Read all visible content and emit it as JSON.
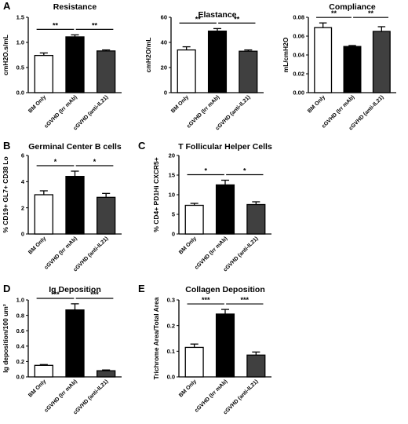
{
  "chart_data": [
    {
      "panel": "A",
      "type": "bar",
      "title": "Resistance",
      "ylabel": "cmH2O.s/mL",
      "categories": [
        "BM Only",
        "cGVHD (Irr mAb)",
        "cGVHD (anti-IL21)"
      ],
      "values": [
        0.74,
        1.11,
        0.83
      ],
      "errors": [
        0.05,
        0.04,
        0.02
      ],
      "ylim": [
        0,
        1.5
      ],
      "yticks": [
        "0.0",
        "0.5",
        "1.0",
        "1.5"
      ],
      "colors": [
        "#ffffff",
        "#000000",
        "#404040"
      ],
      "significance": [
        {
          "from": 0,
          "to": 1,
          "label": "**"
        },
        {
          "from": 1,
          "to": 2,
          "label": "**"
        }
      ]
    },
    {
      "panel": "",
      "type": "bar",
      "title": "Elastance",
      "ylabel": "cmH2O/mL",
      "categories": [
        "BM Only",
        "cGVHD (Irr mAb)",
        "cGVHD (anti-IL21)"
      ],
      "values": [
        34,
        49,
        33
      ],
      "errors": [
        2.5,
        2,
        1
      ],
      "ylim": [
        0,
        60
      ],
      "yticks": [
        "0",
        "20",
        "40",
        "60"
      ],
      "colors": [
        "#ffffff",
        "#000000",
        "#404040"
      ],
      "significance": [
        {
          "from": 0,
          "to": 1,
          "label": "**"
        },
        {
          "from": 1,
          "to": 2,
          "label": "**"
        }
      ]
    },
    {
      "panel": "",
      "type": "bar",
      "title": "Compliance",
      "ylabel": "mL/cmH2O",
      "categories": [
        "BM Only",
        "cGVHD (Irr mAb)",
        "cGVHD (anti-IL21)"
      ],
      "values": [
        0.069,
        0.049,
        0.065
      ],
      "errors": [
        0.005,
        0.001,
        0.005
      ],
      "ylim": [
        0,
        0.08
      ],
      "yticks": [
        "0.00",
        "0.02",
        "0.04",
        "0.06",
        "0.08"
      ],
      "colors": [
        "#ffffff",
        "#000000",
        "#404040"
      ],
      "significance": [
        {
          "from": 0,
          "to": 1,
          "label": "**"
        },
        {
          "from": 1,
          "to": 2,
          "label": "**"
        }
      ]
    },
    {
      "panel": "B",
      "type": "bar",
      "title": "Germinal Center B cells",
      "ylabel": "% CD19+ GL7+ CD38 Lo",
      "categories": [
        "BM Only",
        "cGVHD (Irr mAb)",
        "cGVHD (anti-IL21)"
      ],
      "values": [
        3.0,
        4.4,
        2.8
      ],
      "errors": [
        0.3,
        0.4,
        0.3
      ],
      "ylim": [
        0,
        6
      ],
      "yticks": [
        "0",
        "2",
        "4",
        "6"
      ],
      "colors": [
        "#ffffff",
        "#000000",
        "#404040"
      ],
      "significance": [
        {
          "from": 0,
          "to": 1,
          "label": "*"
        },
        {
          "from": 1,
          "to": 2,
          "label": "*"
        }
      ]
    },
    {
      "panel": "C",
      "type": "bar",
      "title": "T Follicular Helper Cells",
      "ylabel": "% CD4+ PD1Hi CXCR5+",
      "categories": [
        "BM Only",
        "cGVHD (Irr mAb)",
        "cGVHD (anti-IL21)"
      ],
      "values": [
        7.3,
        12.5,
        7.5
      ],
      "errors": [
        0.5,
        1.2,
        0.7
      ],
      "ylim": [
        0,
        20
      ],
      "yticks": [
        "0",
        "5",
        "10",
        "15",
        "20"
      ],
      "colors": [
        "#ffffff",
        "#000000",
        "#404040"
      ],
      "significance": [
        {
          "from": 0,
          "to": 1,
          "label": "*"
        },
        {
          "from": 1,
          "to": 2,
          "label": "*"
        }
      ]
    },
    {
      "panel": "D",
      "type": "bar",
      "title": "Ig Deposition",
      "ylabel": "Ig deposition/100 um²",
      "categories": [
        "BM Only",
        "cGVHD (Irr mAb)",
        "cGVHD (anti-IL21)"
      ],
      "values": [
        0.15,
        0.87,
        0.08
      ],
      "errors": [
        0.01,
        0.08,
        0.01
      ],
      "ylim": [
        0,
        1.0
      ],
      "yticks": [
        "0.0",
        "0.2",
        "0.4",
        "0.6",
        "0.8",
        "1.0"
      ],
      "colors": [
        "#ffffff",
        "#000000",
        "#404040"
      ],
      "significance": [
        {
          "from": 0,
          "to": 1,
          "label": "***"
        },
        {
          "from": 1,
          "to": 2,
          "label": "***"
        }
      ]
    },
    {
      "panel": "E",
      "type": "bar",
      "title": "Collagen Deposition",
      "ylabel": "Trichrome Area/Total Area",
      "categories": [
        "BM Only",
        "cGVHD (Irr mAb)",
        "cGVHD (anti-IL21)"
      ],
      "values": [
        0.115,
        0.245,
        0.085
      ],
      "errors": [
        0.013,
        0.018,
        0.012
      ],
      "ylim": [
        0,
        0.3
      ],
      "yticks": [
        "0.0",
        "0.1",
        "0.2",
        "0.3"
      ],
      "colors": [
        "#ffffff",
        "#000000",
        "#404040"
      ],
      "significance": [
        {
          "from": 0,
          "to": 1,
          "label": "***"
        },
        {
          "from": 1,
          "to": 2,
          "label": "***"
        }
      ]
    }
  ]
}
